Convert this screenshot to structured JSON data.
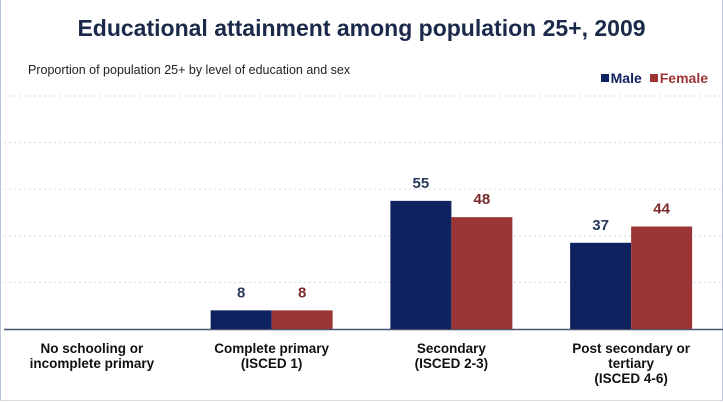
{
  "chart_data": {
    "type": "bar",
    "title": "Educational attainment among population 25+, 2009",
    "subtitle": "Proportion of population 25+ by level of education and sex",
    "categories": [
      [
        "No schooling or",
        "incomplete primary"
      ],
      [
        "Complete primary",
        "(ISCED 1)"
      ],
      [
        "Secondary",
        "(ISCED 2-3)"
      ],
      [
        "Post secondary or",
        "tertiary",
        "(ISCED 4-6)"
      ]
    ],
    "series": [
      {
        "name": "Male",
        "color": "#0e2260",
        "label_color": "#2b3a5c",
        "values": [
          0,
          8,
          55,
          37
        ]
      },
      {
        "name": "Female",
        "color": "#9b3535",
        "label_color": "#7a2a2a",
        "values": [
          0,
          8,
          48,
          44
        ]
      }
    ],
    "ylim": [
      0,
      100
    ],
    "grid": true,
    "legend_position": "top-right"
  }
}
